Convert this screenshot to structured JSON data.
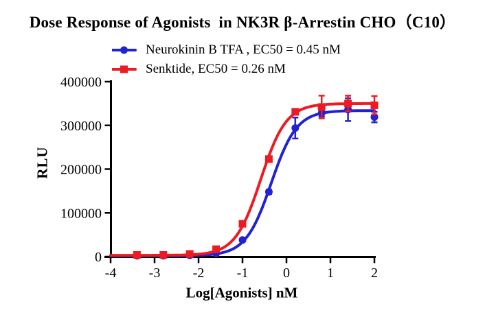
{
  "chart_data": {
    "type": "line",
    "title": "Dose Response of Agonists  in NK3R β-Arrestin CHO（C10）",
    "xlabel": "Log[Agonists] nM",
    "ylabel": "RLU",
    "xlim": [
      -4,
      2
    ],
    "ylim": [
      0,
      400000
    ],
    "x_ticks": [
      -4,
      -3,
      -2,
      -1,
      0,
      1,
      2
    ],
    "x_tick_labels": [
      "-4",
      "-3",
      "-2",
      "-1",
      "0",
      "1",
      "2"
    ],
    "y_ticks": [
      0,
      100000,
      200000,
      300000,
      400000
    ],
    "y_tick_labels": [
      "0",
      "100000",
      "200000",
      "300000",
      "400000"
    ],
    "grid": false,
    "legend_position": "top-left-above-plot",
    "x": [
      -3.4,
      -2.8,
      -2.2,
      -1.6,
      -1.0,
      -0.4,
      0.2,
      0.8,
      1.4,
      2.0
    ],
    "series": [
      {
        "name": "Neurokinin B TFA",
        "label": "Neurokinin B TFA , EC50 = 0.45 nM",
        "color": "#2222D3",
        "marker": "circle",
        "ec50_nM": 0.45,
        "values": [
          2000,
          2000,
          3000,
          7000,
          38000,
          148000,
          294000,
          328000,
          336000,
          319000
        ],
        "errors": [
          1500,
          1500,
          1500,
          2500,
          4000,
          5000,
          24000,
          8000,
          26000,
          12000
        ],
        "fit": {
          "bottom": 2000,
          "top": 334000,
          "hill": 1.5
        }
      },
      {
        "name": "Senktide",
        "label": "Senktide, EC50 = 0.26 nM",
        "color": "#EC1B23",
        "marker": "square",
        "ec50_nM": 0.26,
        "values": [
          4000,
          4000,
          6000,
          17000,
          75000,
          223000,
          331000,
          342000,
          350000,
          346000
        ],
        "errors": [
          2000,
          2000,
          2000,
          3000,
          5000,
          5000,
          6000,
          26000,
          18000,
          21000
        ],
        "fit": {
          "bottom": 3000,
          "top": 350000,
          "hill": 1.5
        }
      }
    ]
  }
}
